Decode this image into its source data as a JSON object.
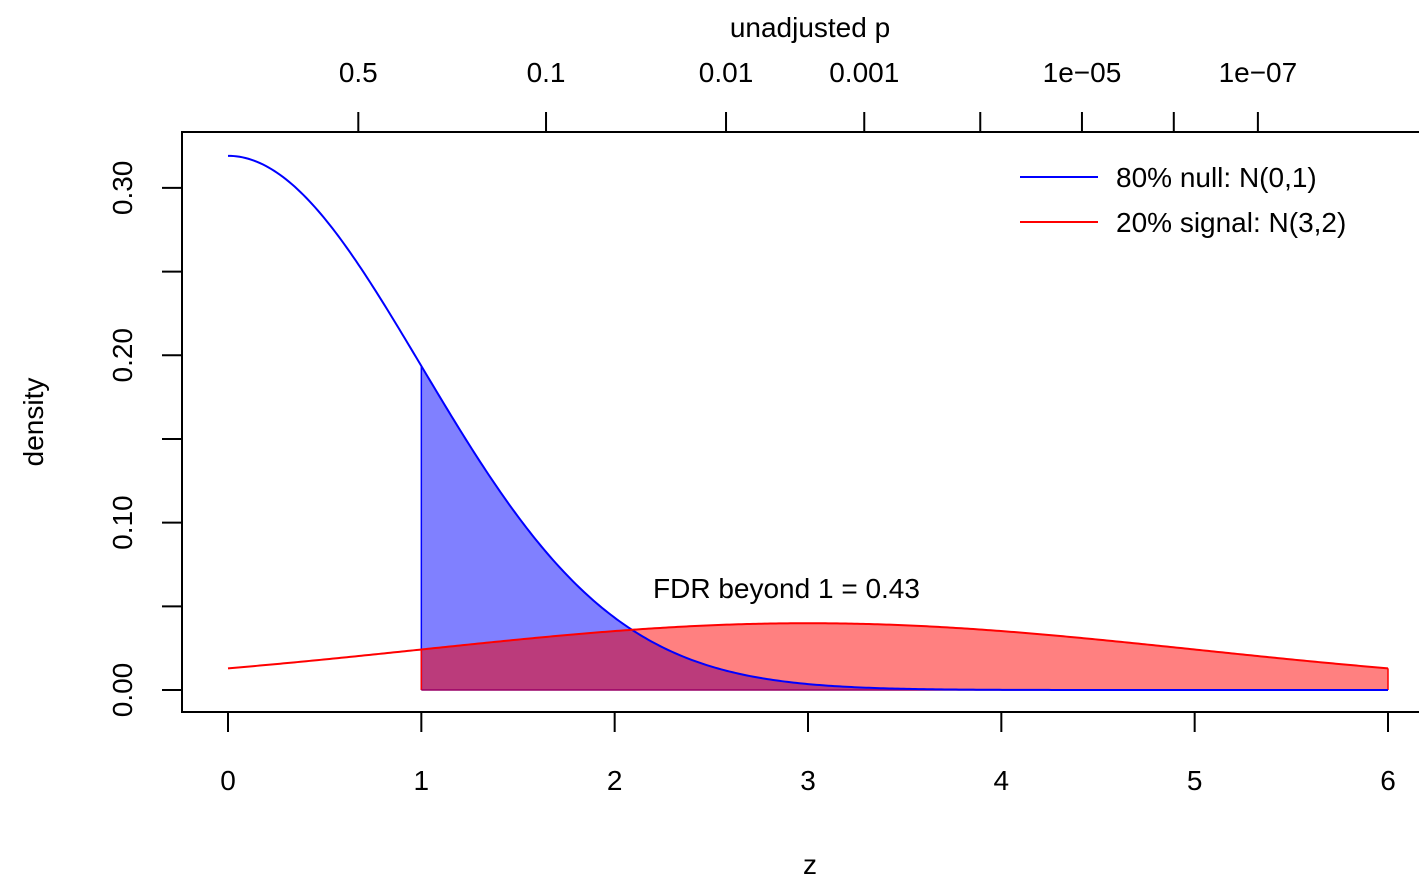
{
  "chart_data": {
    "type": "area",
    "xlabel": "z",
    "ylabel": "density",
    "top_axis_label": "unadjusted p",
    "xlim": [
      0,
      6
    ],
    "ylim": [
      0,
      0.32
    ],
    "x_ticks": [
      0,
      1,
      2,
      3,
      4,
      5,
      6
    ],
    "x_tick_labels": [
      "0",
      "1",
      "2",
      "3",
      "4",
      "5",
      "6"
    ],
    "y_ticks": [
      0,
      0.05,
      0.1,
      0.15,
      0.2,
      0.25,
      0.3
    ],
    "y_tick_labels": [
      "0.00",
      "",
      "0.10",
      "",
      "0.20",
      "",
      "0.30"
    ],
    "top_ticks": [
      {
        "z": 0.674,
        "label": "0.5"
      },
      {
        "z": 1.645,
        "label": "0.1"
      },
      {
        "z": 2.576,
        "label": "0.01"
      },
      {
        "z": 3.291,
        "label": "0.001"
      },
      {
        "z": 3.891,
        "label": ""
      },
      {
        "z": 4.417,
        "label": "1e−05"
      },
      {
        "z": 4.892,
        "label": ""
      },
      {
        "z": 5.327,
        "label": "1e−07"
      }
    ],
    "threshold_z": 1,
    "annotation": "FDR beyond 1 =  0.43",
    "series": [
      {
        "name": "80% null: N(0,1)",
        "color": "#0000ff",
        "fill": "#8080ff",
        "weight": 0.8,
        "mean": 0,
        "sd": 1
      },
      {
        "name": "20% signal: N(3,2)",
        "color": "#ff0000",
        "fill": "#ff8080",
        "weight": 0.2,
        "mean": 3,
        "sd": 2
      }
    ],
    "overlap_fill": "#bb3b7b",
    "legend_placement": "top-right",
    "grid": false
  }
}
